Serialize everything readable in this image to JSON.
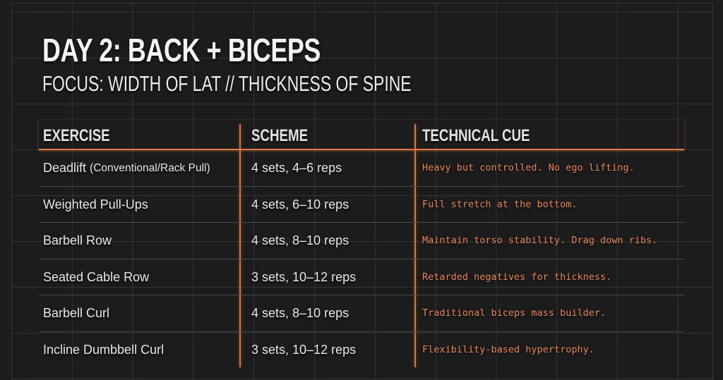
{
  "header": {
    "title": "DAY 2: BACK + BICEPS",
    "subtitle": "FOCUS: WIDTH OF LAT // THICKNESS OF SPINE"
  },
  "table": {
    "columns": [
      "EXERCISE",
      "SCHEME",
      "TECHNICAL CUE"
    ],
    "rows": [
      {
        "exercise": "Deadlift",
        "exercise_note": "(Conventional/Rack Pull)",
        "scheme": "4 sets, 4–6 reps",
        "cue": "Heavy but controlled. No ego lifting."
      },
      {
        "exercise": "Weighted Pull-Ups",
        "exercise_note": "",
        "scheme": "4 sets, 6–10 reps",
        "cue": "Full stretch at the bottom."
      },
      {
        "exercise": "Barbell Row",
        "exercise_note": "",
        "scheme": "4 sets, 8–10 reps",
        "cue": "Maintain torso stability. Drag down ribs."
      },
      {
        "exercise": "Seated Cable Row",
        "exercise_note": "",
        "scheme": "3 sets, 10–12 reps",
        "cue": "Retarded negatives for thickness."
      },
      {
        "exercise": "Barbell Curl",
        "exercise_note": "",
        "scheme": "4 sets, 8–10 reps",
        "cue": "Traditional biceps mass builder."
      },
      {
        "exercise": "Incline Dumbbell Curl",
        "exercise_note": "",
        "scheme": "3 sets, 10–12 reps",
        "cue": "Flexibility-based hypertrophy."
      }
    ]
  },
  "colors": {
    "background": "#1c1c1c",
    "accent": "#e07a45",
    "cue_text": "#e8875a",
    "text": "#e8e8e8"
  }
}
